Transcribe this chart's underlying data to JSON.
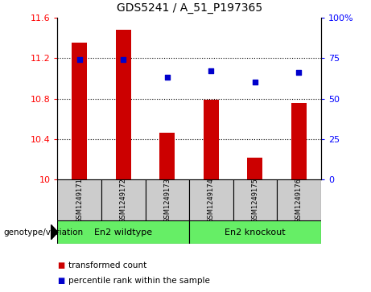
{
  "title": "GDS5241 / A_51_P197365",
  "samples": [
    "GSM1249171",
    "GSM1249172",
    "GSM1249173",
    "GSM1249174",
    "GSM1249175",
    "GSM1249176"
  ],
  "bar_values": [
    11.35,
    11.48,
    10.46,
    10.79,
    10.22,
    10.76
  ],
  "percentile_values": [
    74,
    74,
    63,
    67,
    60,
    66
  ],
  "ylim_left": [
    10,
    11.6
  ],
  "ylim_right": [
    0,
    100
  ],
  "yticks_left": [
    10,
    10.4,
    10.8,
    11.2,
    11.6
  ],
  "yticks_right": [
    0,
    25,
    50,
    75,
    100
  ],
  "bar_color": "#cc0000",
  "dot_color": "#0000cc",
  "bar_width": 0.35,
  "groups": [
    {
      "label": "En2 wildtype",
      "indices": [
        0,
        1,
        2
      ],
      "color": "#66ee66"
    },
    {
      "label": "En2 knockout",
      "indices": [
        3,
        4,
        5
      ],
      "color": "#66ee66"
    }
  ],
  "group_label_prefix": "genotype/variation",
  "legend_items": [
    {
      "color": "#cc0000",
      "label": "transformed count"
    },
    {
      "color": "#0000cc",
      "label": "percentile rank within the sample"
    }
  ],
  "tick_label_box_color": "#cccccc",
  "plot_bg_color": "#ffffff",
  "fig_bg_color": "#ffffff"
}
